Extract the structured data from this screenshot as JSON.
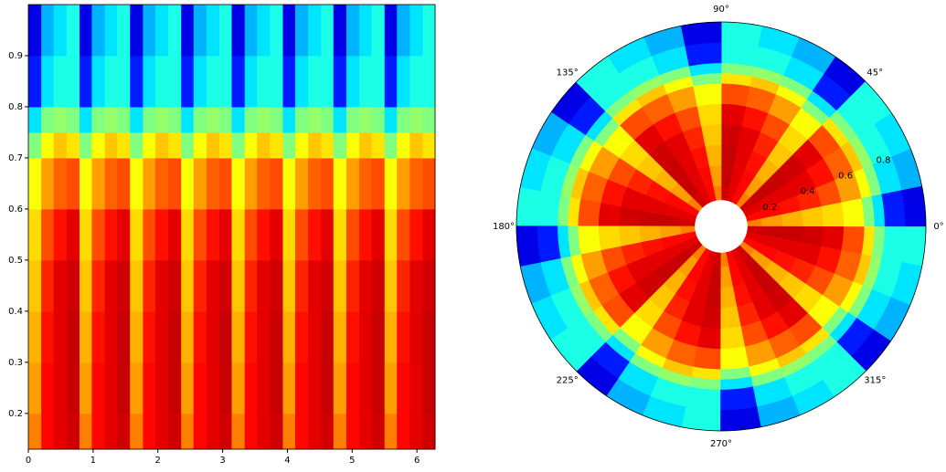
{
  "chart_data": [
    {
      "type": "heatmap",
      "colormap": "jet",
      "x": [
        0,
        0.2,
        0.39,
        0.59,
        0.79,
        0.98,
        1.18,
        1.37,
        1.57,
        1.77,
        1.96,
        2.16,
        2.36,
        2.55,
        2.75,
        2.95,
        3.14,
        3.34,
        3.53,
        3.73,
        3.93,
        4.12,
        4.32,
        4.52,
        4.71,
        4.91,
        5.11,
        5.3,
        5.5,
        5.69,
        5.89,
        6.09,
        6.28
      ],
      "y": [
        0.13,
        0.2,
        0.3,
        0.4,
        0.5,
        0.6,
        0.7,
        0.75,
        0.8,
        0.9,
        1.0
      ],
      "z": [
        [
          0.75,
          0.87,
          0.9,
          0.92,
          0.75,
          0.87,
          0.9,
          0.92,
          0.75,
          0.87,
          0.9,
          0.92,
          0.75,
          0.87,
          0.9,
          0.92,
          0.75,
          0.87,
          0.9,
          0.92,
          0.75,
          0.87,
          0.9,
          0.92,
          0.75,
          0.87,
          0.9,
          0.92,
          0.75,
          0.87,
          0.9,
          0.92
        ],
        [
          0.72,
          0.87,
          0.9,
          0.93,
          0.72,
          0.87,
          0.9,
          0.93,
          0.72,
          0.87,
          0.9,
          0.93,
          0.72,
          0.87,
          0.9,
          0.93,
          0.72,
          0.87,
          0.9,
          0.93,
          0.72,
          0.87,
          0.9,
          0.93,
          0.72,
          0.87,
          0.9,
          0.93,
          0.72,
          0.87,
          0.9,
          0.93
        ],
        [
          0.7,
          0.86,
          0.9,
          0.93,
          0.7,
          0.86,
          0.9,
          0.93,
          0.7,
          0.86,
          0.9,
          0.93,
          0.7,
          0.86,
          0.9,
          0.93,
          0.7,
          0.86,
          0.9,
          0.93,
          0.7,
          0.86,
          0.9,
          0.93,
          0.7,
          0.86,
          0.9,
          0.93,
          0.7,
          0.86,
          0.9,
          0.93
        ],
        [
          0.68,
          0.84,
          0.9,
          0.92,
          0.68,
          0.84,
          0.9,
          0.92,
          0.68,
          0.84,
          0.9,
          0.92,
          0.68,
          0.84,
          0.9,
          0.92,
          0.68,
          0.84,
          0.9,
          0.92,
          0.68,
          0.84,
          0.9,
          0.92,
          0.68,
          0.84,
          0.9,
          0.92,
          0.68,
          0.84,
          0.9,
          0.92
        ],
        [
          0.66,
          0.8,
          0.86,
          0.9,
          0.66,
          0.8,
          0.86,
          0.9,
          0.66,
          0.8,
          0.86,
          0.9,
          0.66,
          0.8,
          0.86,
          0.9,
          0.66,
          0.8,
          0.86,
          0.9,
          0.66,
          0.8,
          0.86,
          0.9,
          0.66,
          0.8,
          0.86,
          0.9,
          0.66,
          0.8,
          0.86,
          0.9
        ],
        [
          0.62,
          0.72,
          0.78,
          0.8,
          0.62,
          0.72,
          0.78,
          0.8,
          0.62,
          0.72,
          0.78,
          0.8,
          0.62,
          0.72,
          0.78,
          0.8,
          0.62,
          0.72,
          0.78,
          0.8,
          0.62,
          0.72,
          0.78,
          0.8,
          0.62,
          0.72,
          0.78,
          0.8,
          0.62,
          0.72,
          0.78,
          0.8
        ],
        [
          0.5,
          0.62,
          0.68,
          0.65,
          0.5,
          0.62,
          0.68,
          0.65,
          0.5,
          0.62,
          0.68,
          0.65,
          0.5,
          0.62,
          0.68,
          0.65,
          0.5,
          0.62,
          0.68,
          0.65,
          0.5,
          0.62,
          0.68,
          0.65,
          0.5,
          0.62,
          0.68,
          0.65,
          0.5,
          0.62,
          0.68,
          0.65
        ],
        [
          0.35,
          0.5,
          0.52,
          0.5,
          0.35,
          0.5,
          0.52,
          0.5,
          0.35,
          0.5,
          0.52,
          0.5,
          0.35,
          0.5,
          0.52,
          0.5,
          0.35,
          0.5,
          0.52,
          0.5,
          0.35,
          0.5,
          0.52,
          0.5,
          0.35,
          0.5,
          0.52,
          0.5,
          0.35,
          0.5,
          0.52,
          0.5
        ],
        [
          0.15,
          0.35,
          0.4,
          0.4,
          0.15,
          0.35,
          0.4,
          0.4,
          0.15,
          0.35,
          0.4,
          0.4,
          0.15,
          0.35,
          0.4,
          0.4,
          0.15,
          0.35,
          0.4,
          0.4,
          0.15,
          0.35,
          0.4,
          0.4,
          0.15,
          0.35,
          0.4,
          0.4,
          0.15,
          0.35,
          0.4,
          0.4
        ],
        [
          0.1,
          0.3,
          0.35,
          0.4,
          0.1,
          0.3,
          0.35,
          0.4,
          0.1,
          0.3,
          0.35,
          0.4,
          0.1,
          0.3,
          0.35,
          0.4,
          0.1,
          0.3,
          0.35,
          0.4,
          0.1,
          0.3,
          0.35,
          0.4,
          0.1,
          0.3,
          0.35,
          0.4,
          0.1,
          0.3,
          0.35,
          0.4
        ]
      ],
      "xlim": [
        0,
        6.28
      ],
      "ylim": [
        0.13,
        1.0
      ],
      "xticks": [
        0,
        1,
        2,
        3,
        4,
        5,
        6
      ],
      "yticks": [
        0.2,
        0.3,
        0.4,
        0.5,
        0.6,
        0.7,
        0.8,
        0.9
      ]
    },
    {
      "type": "polar-heatmap",
      "colormap": "jet",
      "rlim": [
        0,
        1
      ],
      "rticks": [
        0.2,
        0.4,
        0.6,
        0.8
      ],
      "thetaticks": [
        {
          "value": 0,
          "label": "0°"
        },
        {
          "value": 45,
          "label": "45°"
        },
        {
          "value": 90,
          "label": "90°"
        },
        {
          "value": 135,
          "label": "135°"
        },
        {
          "value": 180,
          "label": "180°"
        },
        {
          "value": 225,
          "label": "225°"
        },
        {
          "value": 270,
          "label": "270°"
        },
        {
          "value": 315,
          "label": "315°"
        }
      ]
    }
  ]
}
